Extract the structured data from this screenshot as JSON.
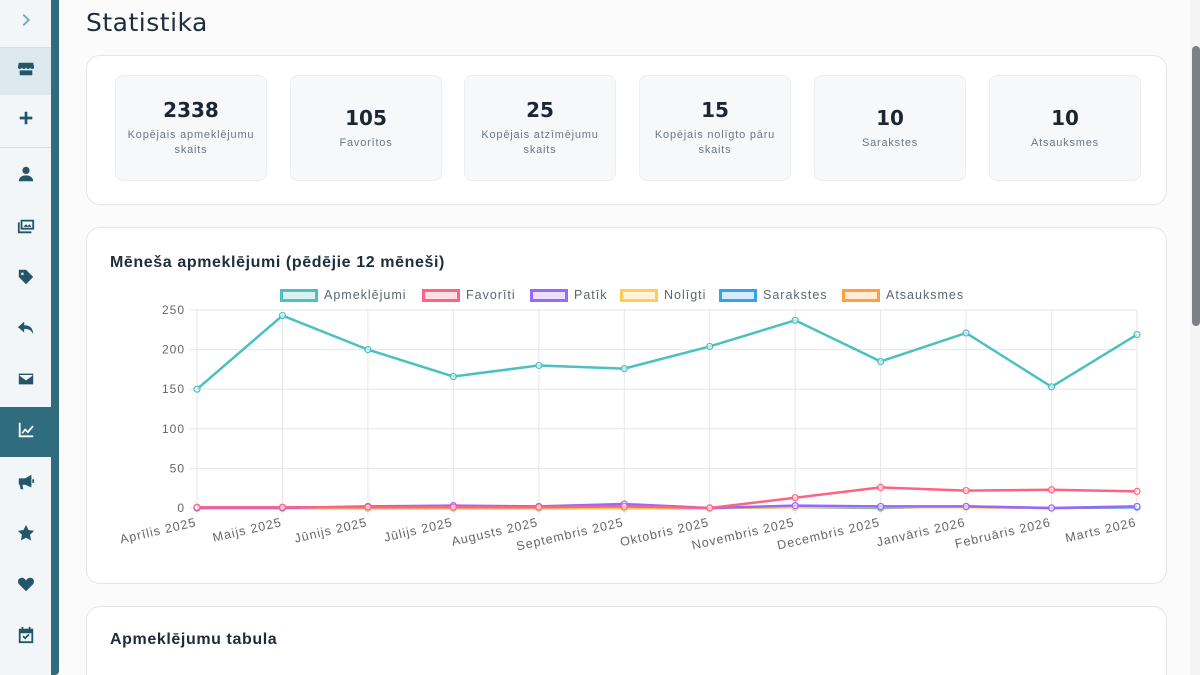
{
  "page": {
    "title": "Statistika"
  },
  "sidebar": {
    "items": [
      {
        "name": "chevron-right-icon"
      },
      {
        "name": "store-icon"
      },
      {
        "name": "plus-icon"
      },
      {
        "name": "user-icon"
      },
      {
        "name": "images-icon"
      },
      {
        "name": "tag-icon"
      },
      {
        "name": "reply-icon"
      },
      {
        "name": "envelope-icon"
      },
      {
        "name": "chart-line-icon"
      },
      {
        "name": "megaphone-icon"
      },
      {
        "name": "star-icon"
      },
      {
        "name": "heart-icon"
      },
      {
        "name": "calendar-check-icon"
      }
    ]
  },
  "stats": [
    {
      "value": "2338",
      "label": "Kopējais apmeklējumu skaits"
    },
    {
      "value": "105",
      "label": "Favorītos"
    },
    {
      "value": "25",
      "label": "Kopējais atzīmējumu skaits"
    },
    {
      "value": "15",
      "label": "Kopējais nolīgto pāru skaits"
    },
    {
      "value": "10",
      "label": "Sarakstes"
    },
    {
      "value": "10",
      "label": "Atsauksmes"
    }
  ],
  "chart_card": {
    "title": "Mēneša apmeklējumi (pēdējie 12 mēneši)"
  },
  "table_card": {
    "title": "Apmeklējumu tabula"
  },
  "chart_data": {
    "type": "line",
    "categories": [
      "Aprīlis 2025",
      "Maijs 2025",
      "Jūnijs 2025",
      "Jūlijs 2025",
      "Augusts 2025",
      "Septembris 2025",
      "Oktobris 2025",
      "Novembris 2025",
      "Decembris 2025",
      "Janvāris 2026",
      "Februāris 2026",
      "Marts 2026"
    ],
    "ylim": [
      0,
      250
    ],
    "yticks": [
      "0",
      "50",
      "100",
      "150",
      "200",
      "250"
    ],
    "grid": true,
    "legend_position": "top",
    "series": [
      {
        "name": "Apmeklējumi",
        "color": "#4bc0c0",
        "values": [
          150,
          243,
          200,
          166,
          180,
          176,
          204,
          237,
          185,
          221,
          153,
          219
        ]
      },
      {
        "name": "Favorīti",
        "color": "#ff6384",
        "values": [
          1,
          1,
          1,
          1,
          1,
          2,
          0,
          13,
          26,
          22,
          23,
          21
        ]
      },
      {
        "name": "Patīk",
        "color": "#9966ff",
        "values": [
          0,
          0,
          2,
          3,
          2,
          5,
          0,
          3,
          2,
          2,
          0,
          2
        ]
      },
      {
        "name": "Nolīgti",
        "color": "#ffcd56",
        "values": [
          0,
          0,
          0,
          0,
          0,
          0,
          0,
          1,
          1,
          1,
          0,
          2
        ]
      },
      {
        "name": "Sarakstes",
        "color": "#36a2eb",
        "values": [
          0,
          0,
          0,
          0,
          0,
          0,
          0,
          1,
          0,
          2,
          0,
          1
        ]
      },
      {
        "name": "Atsauksmes",
        "color": "#ff9f40",
        "values": [
          0,
          0,
          0,
          0,
          0,
          0,
          0,
          1,
          1,
          1,
          0,
          1
        ]
      }
    ]
  }
}
